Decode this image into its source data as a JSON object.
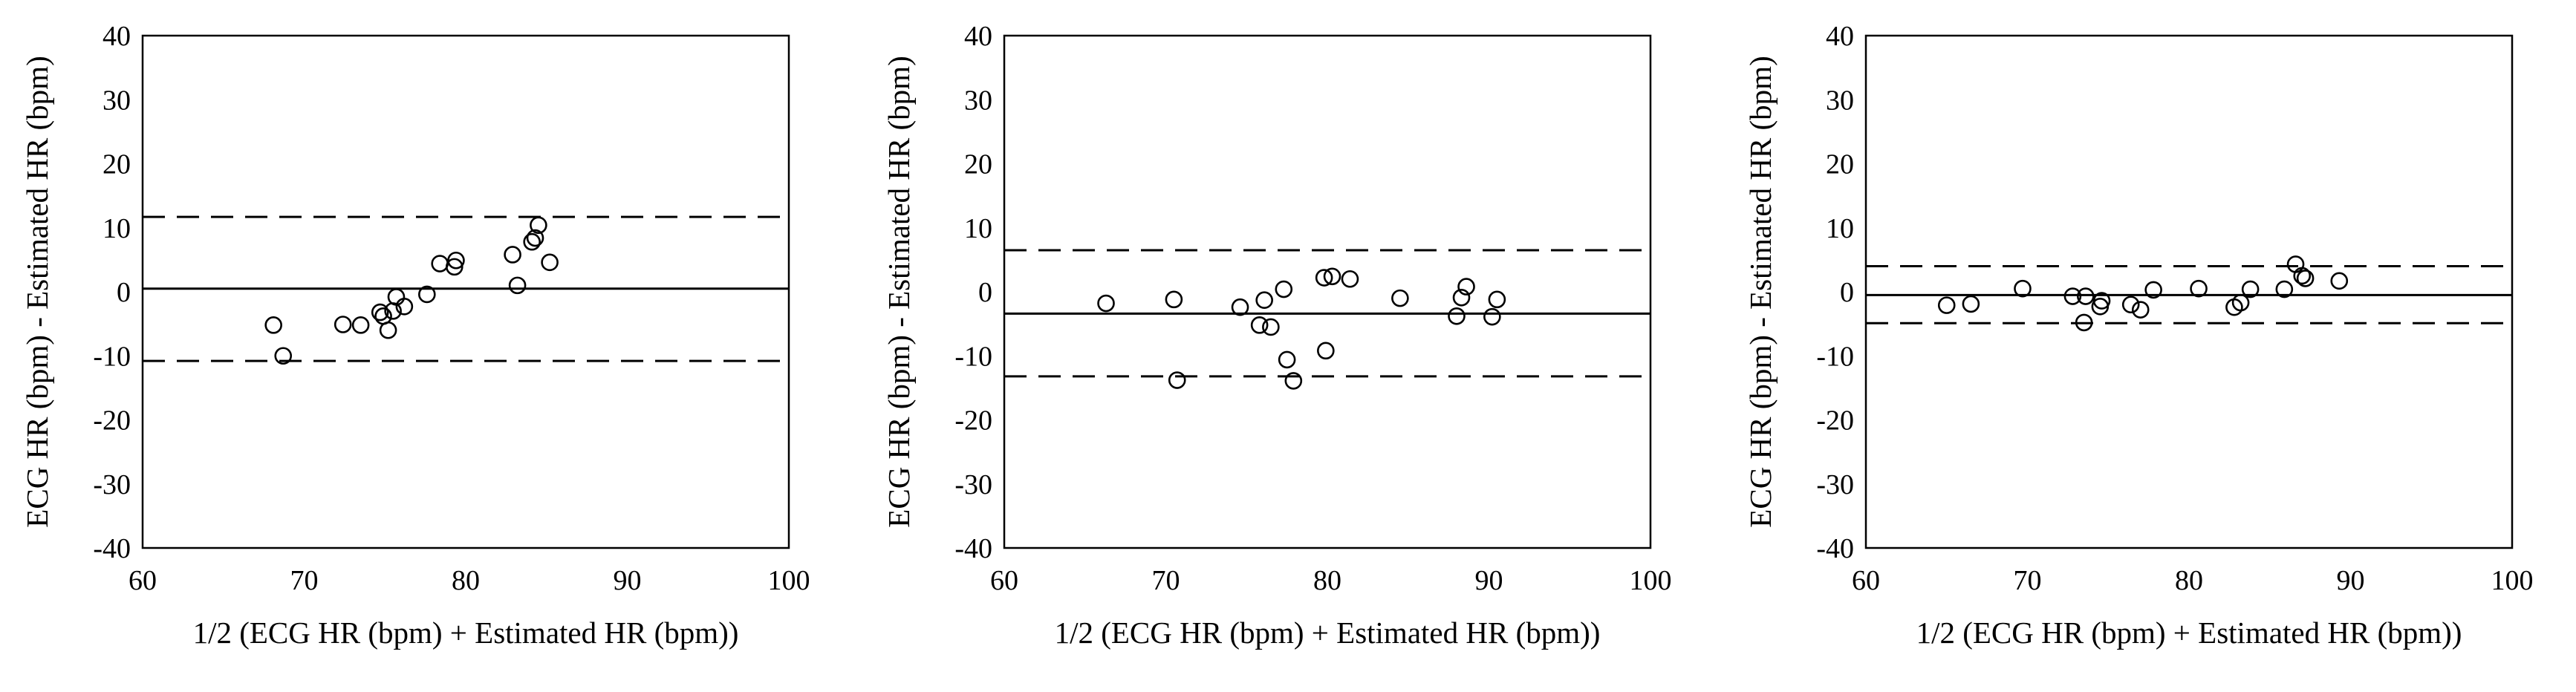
{
  "figure": {
    "panel_count": 3
  },
  "chart_data": [
    {
      "type": "scatter",
      "title": "",
      "xlabel": "1/2 (ECG HR (bpm) + Estimated HR (bpm))",
      "ylabel": "ECG HR (bpm) - Estimated HR (bpm)",
      "xlim": [
        60,
        100
      ],
      "ylim": [
        -40,
        40
      ],
      "xticks": [
        "60",
        "70",
        "80",
        "90",
        "100"
      ],
      "yticks": [
        "40",
        "30",
        "20",
        "10",
        "0",
        "-10",
        "-20",
        "-30",
        "-40"
      ],
      "grid": false,
      "marker": "open-circle",
      "mean_line": 0.5,
      "loa_upper": 11.7,
      "loa_lower": -10.8,
      "points": [
        [
          68.1,
          -5.2
        ],
        [
          68.7,
          -10.0
        ],
        [
          72.4,
          -5.1
        ],
        [
          73.5,
          -5.2
        ],
        [
          74.7,
          -3.2
        ],
        [
          74.9,
          -3.8
        ],
        [
          75.2,
          -6.0
        ],
        [
          75.5,
          -3.0
        ],
        [
          75.7,
          -0.8
        ],
        [
          76.2,
          -2.3
        ],
        [
          77.6,
          -0.4
        ],
        [
          78.4,
          4.4
        ],
        [
          79.3,
          3.9
        ],
        [
          79.4,
          4.9
        ],
        [
          82.9,
          5.8
        ],
        [
          83.2,
          1.0
        ],
        [
          84.1,
          7.8
        ],
        [
          84.3,
          8.4
        ],
        [
          84.5,
          10.4
        ],
        [
          85.2,
          4.6
        ]
      ]
    },
    {
      "type": "scatter",
      "title": "",
      "xlabel": "1/2 (ECG HR (bpm) + Estimated HR (bpm))",
      "ylabel": "ECG HR (bpm) - Estimated HR (bpm)",
      "xlim": [
        60,
        100
      ],
      "ylim": [
        -40,
        40
      ],
      "xticks": [
        "60",
        "70",
        "80",
        "90",
        "100"
      ],
      "yticks": [
        "40",
        "30",
        "20",
        "10",
        "0",
        "-10",
        "-20",
        "-30",
        "-40"
      ],
      "grid": false,
      "marker": "open-circle",
      "mean_line": -3.4,
      "loa_upper": 6.5,
      "loa_lower": -13.2,
      "points": [
        [
          66.3,
          -1.8
        ],
        [
          70.5,
          -1.2
        ],
        [
          70.7,
          -13.8
        ],
        [
          74.6,
          -2.4
        ],
        [
          75.8,
          -5.2
        ],
        [
          76.1,
          -1.3
        ],
        [
          76.5,
          -5.5
        ],
        [
          77.3,
          0.4
        ],
        [
          77.5,
          -10.6
        ],
        [
          77.9,
          -13.9
        ],
        [
          79.8,
          2.2
        ],
        [
          79.9,
          -9.2
        ],
        [
          80.3,
          2.4
        ],
        [
          81.4,
          2.0
        ],
        [
          84.5,
          -1.0
        ],
        [
          88.0,
          -3.8
        ],
        [
          88.3,
          -0.9
        ],
        [
          88.6,
          0.8
        ],
        [
          90.2,
          -3.9
        ],
        [
          90.5,
          -1.2
        ]
      ]
    },
    {
      "type": "scatter",
      "title": "",
      "xlabel": "1/2 (ECG HR (bpm) + Estimated HR (bpm))",
      "ylabel": "ECG HR (bpm) - Estimated HR (bpm)",
      "xlim": [
        60,
        100
      ],
      "ylim": [
        -40,
        40
      ],
      "xticks": [
        "60",
        "70",
        "80",
        "90",
        "100"
      ],
      "yticks": [
        "40",
        "30",
        "20",
        "10",
        "0",
        "-10",
        "-20",
        "-30",
        "-40"
      ],
      "grid": false,
      "marker": "open-circle",
      "mean_line": -0.5,
      "loa_upper": 4.0,
      "loa_lower": -4.9,
      "points": [
        [
          65.0,
          -2.1
        ],
        [
          66.5,
          -1.9
        ],
        [
          69.7,
          0.5
        ],
        [
          72.8,
          -0.7
        ],
        [
          73.5,
          -4.8
        ],
        [
          73.6,
          -0.7
        ],
        [
          74.5,
          -2.3
        ],
        [
          74.6,
          -1.4
        ],
        [
          76.4,
          -2.0
        ],
        [
          77.0,
          -2.8
        ],
        [
          77.8,
          0.3
        ],
        [
          80.6,
          0.5
        ],
        [
          82.8,
          -2.4
        ],
        [
          83.2,
          -1.7
        ],
        [
          83.8,
          0.4
        ],
        [
          85.9,
          0.4
        ],
        [
          86.6,
          4.3
        ],
        [
          87.0,
          2.5
        ],
        [
          87.2,
          2.1
        ],
        [
          89.3,
          1.7
        ]
      ]
    }
  ]
}
